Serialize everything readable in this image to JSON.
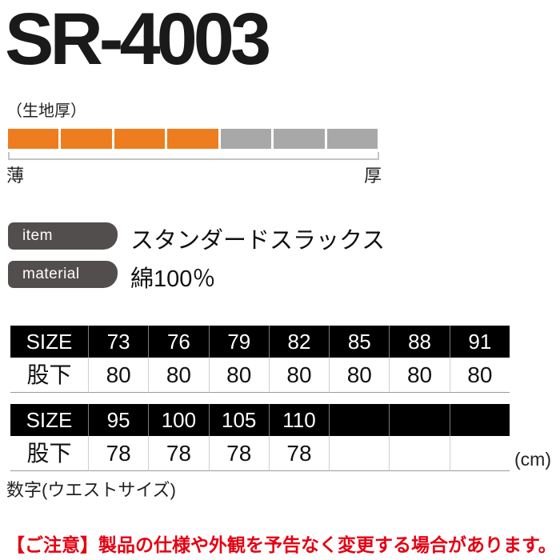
{
  "title": "SR-4003",
  "fabric_gauge": {
    "label": "（生地厚）",
    "total_segments": 7,
    "filled_segments": 4,
    "left_label": "薄",
    "right_label": "厚"
  },
  "item": {
    "badge": "item",
    "value": "スタンダードスラックス"
  },
  "material": {
    "badge": "material",
    "value": "綿100％"
  },
  "size_tables": [
    {
      "header": [
        "SIZE",
        "73",
        "76",
        "79",
        "82",
        "85",
        "88",
        "91"
      ],
      "row": [
        "股下",
        "80",
        "80",
        "80",
        "80",
        "80",
        "80",
        "80"
      ]
    },
    {
      "header": [
        "SIZE",
        "95",
        "100",
        "105",
        "110",
        "",
        "",
        ""
      ],
      "row": [
        "股下",
        "78",
        "78",
        "78",
        "78",
        "",
        "",
        ""
      ]
    }
  ],
  "unit_label": "(cm)",
  "size_note": "数字(ウエストサイズ)",
  "notice": "【ご注意】製品の仕様や外観を予告なく変更する場合があります。",
  "colors": {
    "accent_orange": "#ED7D1E",
    "gauge_gray": "#A9A8A8",
    "badge_gray": "#534E4E",
    "notice_red": "#E60012",
    "table_header_bg": "#000000"
  }
}
